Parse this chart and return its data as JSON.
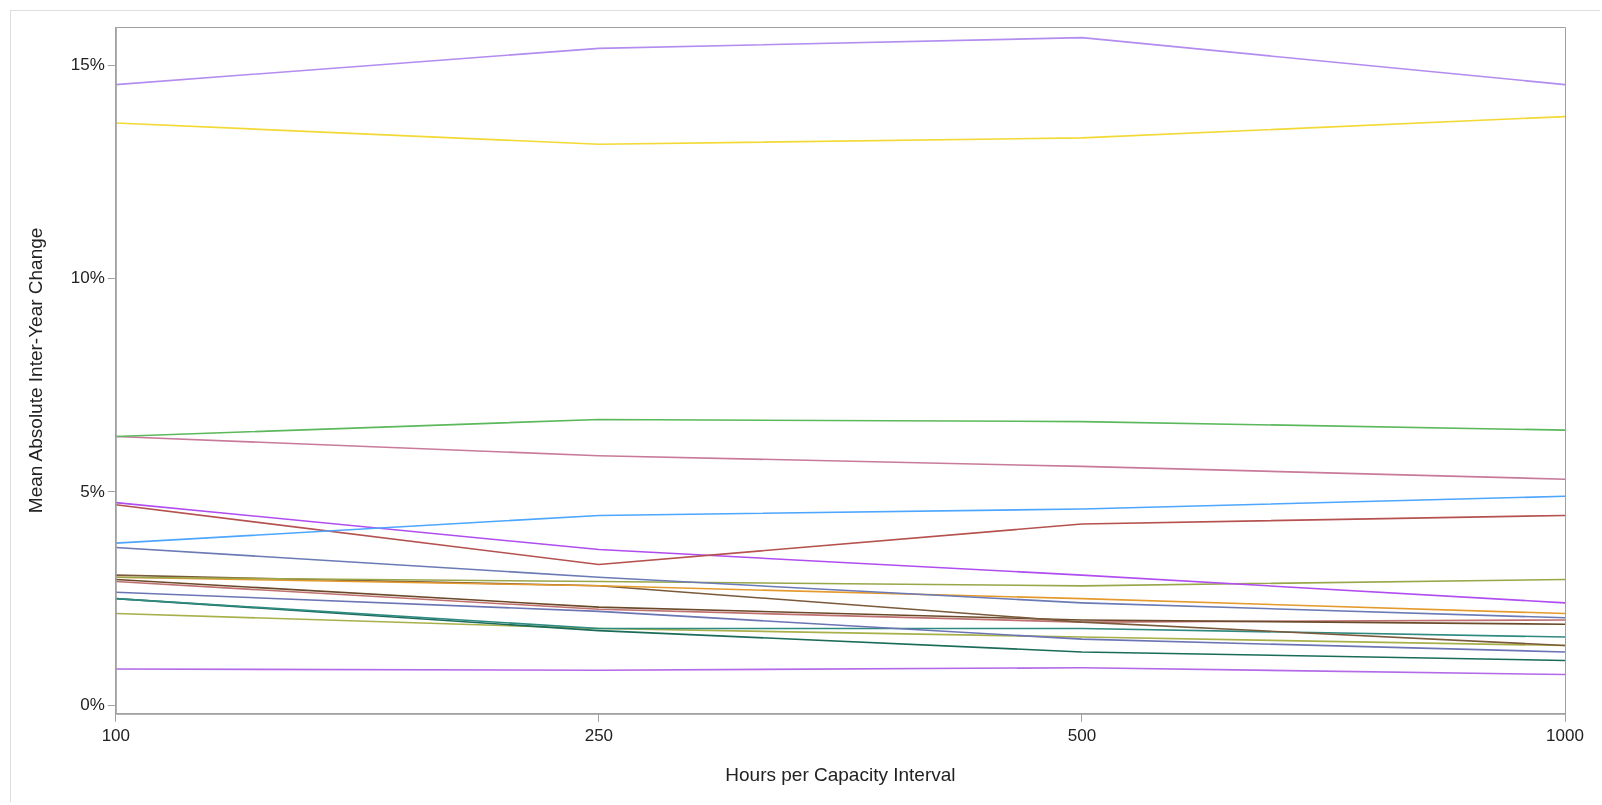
{
  "chart_data": {
    "type": "line",
    "xlabel": "Hours per Capacity Interval",
    "ylabel": "Mean Absolute Inter-Year Change",
    "categories": [
      "100",
      "250",
      "500",
      "1000"
    ],
    "ylim": [
      -0.2,
      15.9
    ],
    "yticks": [
      {
        "value": 0,
        "label": "0%"
      },
      {
        "value": 5,
        "label": "5%"
      },
      {
        "value": 10,
        "label": "10%"
      },
      {
        "value": 15,
        "label": "15%"
      }
    ],
    "grid": false,
    "legend": false,
    "marker": "none",
    "line_style": "solid",
    "series": [
      {
        "color": "#b38cf0",
        "values": [
          14.55,
          15.4,
          15.65,
          14.55
        ]
      },
      {
        "color": "#f2d935",
        "values": [
          13.65,
          13.15,
          13.3,
          13.8
        ]
      },
      {
        "color": "#5cb85c",
        "values": [
          6.3,
          6.7,
          6.65,
          6.45
        ]
      },
      {
        "color": "#c97a9a",
        "values": [
          6.3,
          5.85,
          5.6,
          5.3
        ]
      },
      {
        "color": "#4da6ff",
        "values": [
          3.8,
          4.45,
          4.6,
          4.9
        ]
      },
      {
        "color": "#b5524f",
        "values": [
          4.7,
          3.3,
          4.25,
          4.45
        ]
      },
      {
        "color": "#b04df0",
        "values": [
          4.75,
          3.65,
          3.05,
          2.4
        ]
      },
      {
        "color": "#6a7ab5",
        "values": [
          3.7,
          3.0,
          2.4,
          2.05
        ]
      },
      {
        "color": "#9aa64a",
        "values": [
          3.0,
          2.9,
          2.8,
          2.95
        ]
      },
      {
        "color": "#e59a2e",
        "values": [
          3.0,
          2.8,
          2.5,
          2.15
        ]
      },
      {
        "color": "#7a5a3a",
        "values": [
          3.05,
          2.8,
          1.95,
          1.4
        ]
      },
      {
        "color": "#6b4a2a",
        "values": [
          2.95,
          2.3,
          2.0,
          1.9
        ]
      },
      {
        "color": "#c07070",
        "values": [
          2.9,
          2.25,
          1.95,
          2.0
        ]
      },
      {
        "color": "#6b75b5",
        "values": [
          2.65,
          2.2,
          1.55,
          1.25
        ]
      },
      {
        "color": "#2f8a80",
        "values": [
          2.5,
          1.8,
          1.8,
          1.6
        ]
      },
      {
        "color": "#1a6b5a",
        "values": [
          2.5,
          1.75,
          1.25,
          1.05
        ]
      },
      {
        "color": "#a8b04a",
        "values": [
          2.15,
          1.8,
          1.6,
          1.4
        ]
      },
      {
        "color": "#b36ae8",
        "values": [
          0.85,
          0.82,
          0.88,
          0.72
        ]
      }
    ]
  }
}
